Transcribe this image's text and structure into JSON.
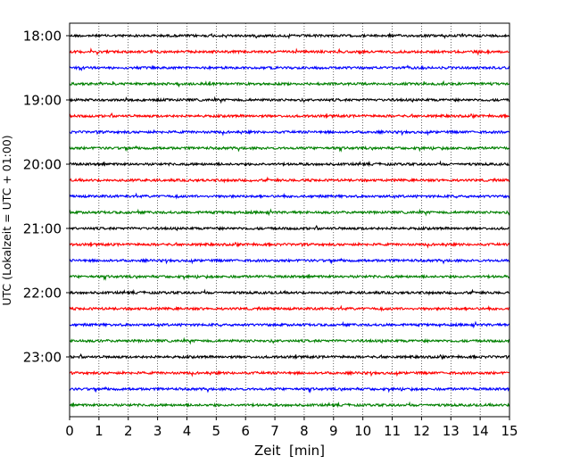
{
  "chart_data": {
    "type": "line",
    "title": "",
    "xlabel": "Zeit  [min]",
    "ylabel": "UTC (Lokalzeit = UTC + 01:00)",
    "xlim": [
      0,
      15
    ],
    "x_ticks": [
      "0",
      "1",
      "2",
      "3",
      "4",
      "5",
      "6",
      "7",
      "8",
      "9",
      "10",
      "11",
      "12",
      "13",
      "14",
      "15"
    ],
    "y_ticks": [
      "18:00",
      "19:00",
      "20:00",
      "21:00",
      "22:00",
      "23:00"
    ],
    "grid": "vertical dotted lines at each minute",
    "legend": "none",
    "trace_colors": [
      "#000000",
      "#ff0000",
      "#0000ff",
      "#008000"
    ],
    "traces": [
      {
        "start": "18:00",
        "color": "#000000"
      },
      {
        "start": "18:15",
        "color": "#ff0000"
      },
      {
        "start": "18:30",
        "color": "#0000ff"
      },
      {
        "start": "18:45",
        "color": "#008000"
      },
      {
        "start": "19:00",
        "color": "#000000"
      },
      {
        "start": "19:15",
        "color": "#ff0000"
      },
      {
        "start": "19:30",
        "color": "#0000ff"
      },
      {
        "start": "19:45",
        "color": "#008000"
      },
      {
        "start": "20:00",
        "color": "#000000"
      },
      {
        "start": "20:15",
        "color": "#ff0000"
      },
      {
        "start": "20:30",
        "color": "#0000ff"
      },
      {
        "start": "20:45",
        "color": "#008000"
      },
      {
        "start": "21:00",
        "color": "#000000"
      },
      {
        "start": "21:15",
        "color": "#ff0000"
      },
      {
        "start": "21:30",
        "color": "#0000ff"
      },
      {
        "start": "21:45",
        "color": "#008000"
      },
      {
        "start": "22:00",
        "color": "#000000"
      },
      {
        "start": "22:15",
        "color": "#ff0000"
      },
      {
        "start": "22:30",
        "color": "#0000ff"
      },
      {
        "start": "22:45",
        "color": "#008000"
      },
      {
        "start": "23:00",
        "color": "#000000"
      },
      {
        "start": "23:15",
        "color": "#ff0000"
      },
      {
        "start": "23:30",
        "color": "#0000ff"
      },
      {
        "start": "23:45",
        "color": "#008000"
      }
    ]
  }
}
